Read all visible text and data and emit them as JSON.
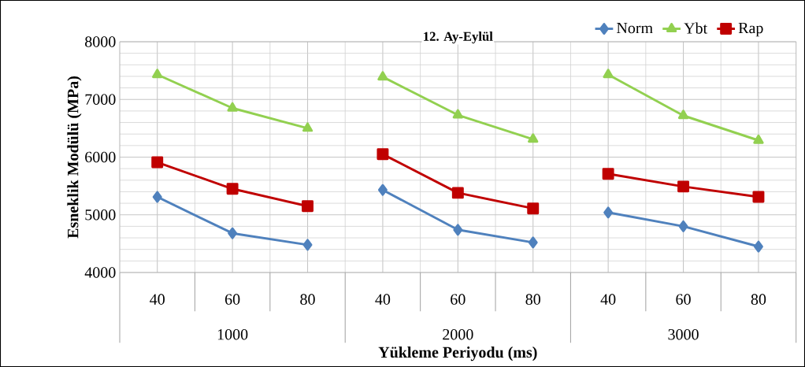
{
  "chart_data": {
    "type": "line",
    "title": "12. Ay-Eylül",
    "xlabel": "Yükleme Periyodu (ms)",
    "ylabel": "Esneklik Modülü (MPa)",
    "categories": [
      "40",
      "60",
      "80",
      "40",
      "60",
      "80",
      "40",
      "60",
      "80"
    ],
    "annotations": [
      "1000",
      "2000",
      "3000"
    ],
    "series": [
      {
        "name": "Norm",
        "color": "#4f81bd",
        "marker": "diamond",
        "values": [
          5310,
          4680,
          4480,
          5430,
          4740,
          4520,
          5040,
          4800,
          4450
        ]
      },
      {
        "name": "Ybt",
        "color": "#92d050",
        "marker": "triangle",
        "values": [
          7430,
          6850,
          6500,
          7390,
          6730,
          6310,
          7430,
          6720,
          6290
        ]
      },
      {
        "name": "Rap",
        "color": "#c00000",
        "marker": "square",
        "values": [
          5910,
          5450,
          5150,
          6050,
          5380,
          5110,
          5710,
          5490,
          5310
        ]
      }
    ],
    "ylim": [
      4000,
      8000
    ],
    "yticks": [
      4000,
      {
        "value": 4200,
        "label": null
      },
      {
        "value": 4400,
        "label": null
      },
      {
        "value": 4600,
        "label": null
      },
      {
        "value": 4800,
        "label": null
      },
      5000,
      {
        "value": 5200,
        "label": null
      },
      {
        "value": 5400,
        "label": null
      },
      {
        "value": 5600,
        "label": null
      },
      {
        "value": 5800,
        "label": null
      },
      6000,
      {
        "value": 6200,
        "label": null
      },
      {
        "value": 6400,
        "label": null
      },
      {
        "value": 6600,
        "label": null
      },
      {
        "value": 6800,
        "label": null
      },
      7000,
      {
        "value": 7200,
        "label": null
      },
      {
        "value": 7400,
        "label": null
      },
      {
        "value": 7600,
        "label": null
      },
      {
        "value": 7800,
        "label": null
      },
      8000
    ],
    "grid": true,
    "legend": "top right",
    "line_style": "solid"
  }
}
